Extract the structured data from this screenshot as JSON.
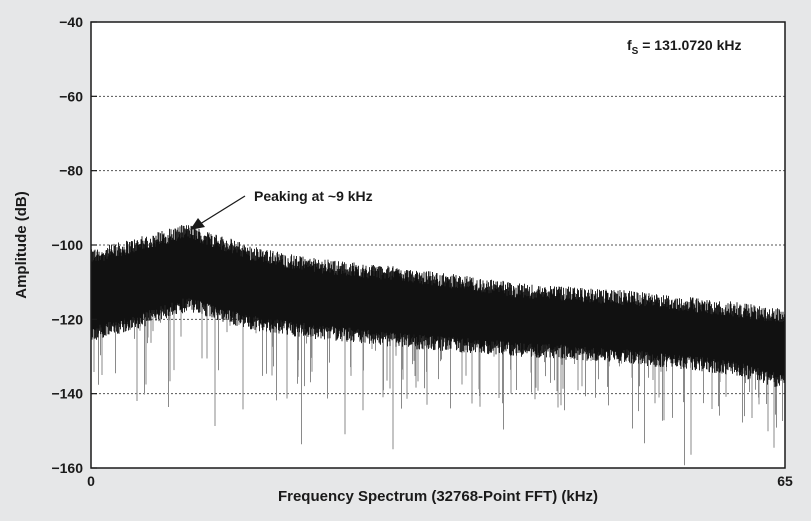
{
  "chart_data": {
    "type": "line",
    "title": "",
    "xlabel": "Frequency Spectrum (32768-Point FFT) (kHz)",
    "ylabel": "Amplitude (dB)",
    "xlim": [
      0,
      65
    ],
    "ylim": [
      -160,
      -40
    ],
    "x_ticks": [
      "0",
      "65"
    ],
    "y_ticks": [
      -40,
      -60,
      -80,
      -100,
      -120,
      -140,
      -160
    ],
    "y_tick_labels": [
      "−40",
      "−60",
      "−80",
      "−100",
      "−120",
      "−140",
      "−160"
    ],
    "grid": "dotted horizontal",
    "series": [
      {
        "color": "#111111",
        "envelope": {
          "x": [
            0,
            4,
            9,
            15,
            20,
            30,
            40,
            50,
            60,
            65
          ],
          "upper": [
            -104,
            -101,
            -97,
            -103,
            -106,
            -109,
            -113,
            -115,
            -118,
            -120
          ],
          "lower": [
            -122,
            -119,
            -114,
            -119,
            -121,
            -124,
            -126,
            -128,
            -131,
            -135
          ],
          "dips_to": -160
        }
      }
    ],
    "annotations": [
      {
        "text": "Peaking at ~9 kHz",
        "x": 9,
        "y": -98
      },
      {
        "text_prefix": "f",
        "text_sub": "S",
        "text_suffix": " = 131.0720 kHz"
      }
    ]
  }
}
